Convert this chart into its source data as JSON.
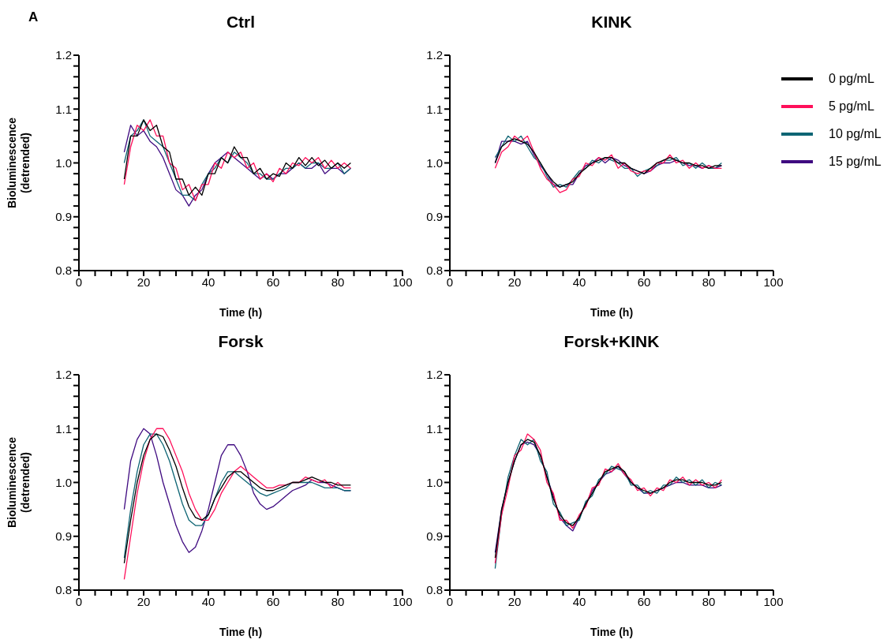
{
  "chart_data": [
    {
      "type": "line",
      "title": "Ctrl",
      "xlabel": "Time (h)",
      "ylabel": "Bioluminescence (detrended)",
      "annotations": [
        "A"
      ],
      "x": [
        14,
        16,
        18,
        20,
        22,
        24,
        26,
        28,
        30,
        32,
        34,
        36,
        38,
        40,
        42,
        44,
        46,
        48,
        50,
        52,
        54,
        56,
        58,
        60,
        62,
        64,
        66,
        68,
        70,
        72,
        74,
        76,
        78,
        80,
        82,
        84
      ],
      "xlim": [
        0,
        100
      ],
      "xticks": [
        0,
        {
          "value": 5,
          "label": null
        },
        {
          "value": 10,
          "label": null
        },
        {
          "value": 15,
          "label": null
        },
        20,
        {
          "value": 25,
          "label": null
        },
        {
          "value": 30,
          "label": null
        },
        {
          "value": 35,
          "label": null
        },
        40,
        {
          "value": 45,
          "label": null
        },
        {
          "value": 50,
          "label": null
        },
        {
          "value": 55,
          "label": null
        },
        60,
        {
          "value": 65,
          "label": null
        },
        {
          "value": 70,
          "label": null
        },
        {
          "value": 75,
          "label": null
        },
        80,
        {
          "value": 85,
          "label": null
        },
        {
          "value": 90,
          "label": null
        },
        {
          "value": 95,
          "label": null
        },
        100
      ],
      "ylim": [
        0.8,
        1.2
      ],
      "yticks": [
        0.8,
        {
          "value": 0.82,
          "label": null
        },
        {
          "value": 0.84,
          "label": null
        },
        {
          "value": 0.86,
          "label": null
        },
        {
          "value": 0.88,
          "label": null
        },
        0.9,
        {
          "value": 0.92,
          "label": null
        },
        {
          "value": 0.94,
          "label": null
        },
        {
          "value": 0.96,
          "label": null
        },
        {
          "value": 0.98,
          "label": null
        },
        {
          "value": 1,
          "label": "1.0"
        },
        {
          "value": 1.02,
          "label": null
        },
        {
          "value": 1.04,
          "label": null
        },
        {
          "value": 1.06,
          "label": null
        },
        {
          "value": 1.08,
          "label": null
        },
        1.1,
        {
          "value": 1.12,
          "label": null
        },
        {
          "value": 1.14,
          "label": null
        },
        {
          "value": 1.16,
          "label": null
        },
        {
          "value": 1.18,
          "label": null
        },
        1.2
      ],
      "series": [
        {
          "color": "#000000",
          "values": [
            0.97,
            1.05,
            1.05,
            1.08,
            1.06,
            1.07,
            1.03,
            1.02,
            0.97,
            0.97,
            0.94,
            0.955,
            0.94,
            0.98,
            0.98,
            1.01,
            1.0,
            1.03,
            1.01,
            1.01,
            0.98,
            0.99,
            0.97,
            0.98,
            0.975,
            1.0,
            0.99,
            1.01,
            0.995,
            1.01,
            0.995,
            1.005,
            0.99,
            1.0,
            0.99,
            1.0
          ]
        },
        {
          "color": "#ff0f5a",
          "values": [
            0.96,
            1.03,
            1.07,
            1.06,
            1.08,
            1.05,
            1.05,
            1.0,
            0.99,
            0.95,
            0.96,
            0.93,
            0.96,
            0.96,
            1.0,
            0.99,
            1.02,
            1.01,
            1.02,
            0.99,
            1.0,
            0.97,
            0.98,
            0.965,
            0.99,
            0.98,
            1.0,
            0.995,
            1.01,
            1.0,
            1.01,
            0.99,
            1.005,
            0.99,
            1.0,
            0.99
          ]
        },
        {
          "color": "#0e6574",
          "values": [
            1.0,
            1.05,
            1.06,
            1.08,
            1.05,
            1.04,
            1.03,
            1.0,
            0.97,
            0.94,
            0.94,
            0.93,
            0.96,
            0.98,
            0.99,
            1.01,
            1.0,
            1.02,
            1.01,
            1.0,
            0.98,
            0.98,
            0.97,
            0.97,
            0.98,
            0.99,
            0.99,
            1.0,
            0.99,
            1.0,
            1.0,
            0.99,
            0.99,
            1.0,
            0.98,
            0.99
          ]
        },
        {
          "color": "#3f0a80",
          "values": [
            1.02,
            1.07,
            1.05,
            1.06,
            1.04,
            1.03,
            1.01,
            0.98,
            0.95,
            0.94,
            0.92,
            0.94,
            0.95,
            0.98,
            1.0,
            1.01,
            1.02,
            1.01,
            1.0,
            0.99,
            0.98,
            0.97,
            0.98,
            0.97,
            0.98,
            0.98,
            0.99,
            1.0,
            0.99,
            0.99,
            1.0,
            0.98,
            0.99,
            0.99,
            0.98,
            0.99
          ]
        }
      ]
    },
    {
      "type": "line",
      "title": "KINK",
      "xlabel": "Time (h)",
      "legend": "right",
      "x": [
        14,
        16,
        18,
        20,
        22,
        24,
        26,
        28,
        30,
        32,
        34,
        36,
        38,
        40,
        42,
        44,
        46,
        48,
        50,
        52,
        54,
        56,
        58,
        60,
        62,
        64,
        66,
        68,
        70,
        72,
        74,
        76,
        78,
        80,
        82,
        84
      ],
      "xlim": [
        0,
        100
      ],
      "xticks": [
        0,
        {
          "value": 5,
          "label": null
        },
        {
          "value": 10,
          "label": null
        },
        {
          "value": 15,
          "label": null
        },
        20,
        {
          "value": 25,
          "label": null
        },
        {
          "value": 30,
          "label": null
        },
        {
          "value": 35,
          "label": null
        },
        40,
        {
          "value": 45,
          "label": null
        },
        {
          "value": 50,
          "label": null
        },
        {
          "value": 55,
          "label": null
        },
        60,
        {
          "value": 65,
          "label": null
        },
        {
          "value": 70,
          "label": null
        },
        {
          "value": 75,
          "label": null
        },
        80,
        {
          "value": 85,
          "label": null
        },
        {
          "value": 90,
          "label": null
        },
        {
          "value": 95,
          "label": null
        },
        100
      ],
      "ylim": [
        0.8,
        1.2
      ],
      "yticks": [
        0.8,
        {
          "value": 0.82,
          "label": null
        },
        {
          "value": 0.84,
          "label": null
        },
        {
          "value": 0.86,
          "label": null
        },
        {
          "value": 0.88,
          "label": null
        },
        0.9,
        {
          "value": 0.92,
          "label": null
        },
        {
          "value": 0.94,
          "label": null
        },
        {
          "value": 0.96,
          "label": null
        },
        {
          "value": 0.98,
          "label": null
        },
        {
          "value": 1,
          "label": "1.0"
        },
        {
          "value": 1.02,
          "label": null
        },
        {
          "value": 1.04,
          "label": null
        },
        {
          "value": 1.06,
          "label": null
        },
        {
          "value": 1.08,
          "label": null
        },
        1.1,
        {
          "value": 1.12,
          "label": null
        },
        {
          "value": 1.14,
          "label": null
        },
        {
          "value": 1.16,
          "label": null
        },
        {
          "value": 1.18,
          "label": null
        },
        1.2
      ],
      "series": [
        {
          "name": "0 pg/mL",
          "color": "#000000",
          "values": [
            1.0,
            1.03,
            1.04,
            1.045,
            1.04,
            1.035,
            1.02,
            1.0,
            0.98,
            0.965,
            0.955,
            0.96,
            0.965,
            0.98,
            0.99,
            1.0,
            1.005,
            1.01,
            1.01,
            1.0,
            1.0,
            0.99,
            0.985,
            0.98,
            0.99,
            1.0,
            1.005,
            1.01,
            1.005,
            1.0,
            1.0,
            0.995,
            0.995,
            0.99,
            0.995,
            0.995
          ]
        },
        {
          "name": "5 pg/mL",
          "color": "#ff0f5a",
          "values": [
            0.99,
            1.02,
            1.03,
            1.05,
            1.04,
            1.05,
            1.02,
            0.99,
            0.97,
            0.96,
            0.945,
            0.95,
            0.97,
            0.975,
            1.0,
            0.995,
            1.01,
            1.005,
            1.015,
            0.99,
            1.0,
            0.985,
            0.98,
            0.985,
            0.985,
            1.0,
            1.0,
            1.015,
            1.0,
            1.005,
            0.99,
            1.0,
            0.99,
            0.995,
            0.99,
            0.99
          ]
        },
        {
          "name": "10 pg/mL",
          "color": "#0e6574",
          "values": [
            1.01,
            1.03,
            1.05,
            1.04,
            1.05,
            1.03,
            1.01,
            1.0,
            0.975,
            0.955,
            0.96,
            0.955,
            0.97,
            0.985,
            0.99,
            1.005,
            1.0,
            1.01,
            1.005,
            1.0,
            0.99,
            0.99,
            0.975,
            0.985,
            0.99,
            0.995,
            1.005,
            1.005,
            1.01,
            0.995,
            1.0,
            0.99,
            1.0,
            0.99,
            0.99,
            1.0
          ]
        },
        {
          "name": "15 pg/mL",
          "color": "#3f0a80",
          "values": [
            1.0,
            1.04,
            1.04,
            1.04,
            1.035,
            1.04,
            1.015,
            0.995,
            0.98,
            0.96,
            0.955,
            0.96,
            0.96,
            0.98,
            0.995,
            1.0,
            1.01,
            1.0,
            1.01,
            1.005,
            0.995,
            0.99,
            0.985,
            0.98,
            0.985,
            0.995,
            1.0,
            1.0,
            1.005,
            1.0,
            0.995,
            0.995,
            0.99,
            0.995,
            0.99,
            0.995
          ]
        }
      ]
    },
    {
      "type": "line",
      "title": "Forsk",
      "xlabel": "Time (h)",
      "ylabel": "Bioluminescence (detrended)",
      "x": [
        14,
        16,
        18,
        20,
        22,
        24,
        26,
        28,
        30,
        32,
        34,
        36,
        38,
        40,
        42,
        44,
        46,
        48,
        50,
        52,
        54,
        56,
        58,
        60,
        62,
        64,
        66,
        68,
        70,
        72,
        74,
        76,
        78,
        80,
        82,
        84
      ],
      "xlim": [
        0,
        100
      ],
      "xticks": [
        0,
        {
          "value": 5,
          "label": null
        },
        {
          "value": 10,
          "label": null
        },
        {
          "value": 15,
          "label": null
        },
        20,
        {
          "value": 25,
          "label": null
        },
        {
          "value": 30,
          "label": null
        },
        {
          "value": 35,
          "label": null
        },
        40,
        {
          "value": 45,
          "label": null
        },
        {
          "value": 50,
          "label": null
        },
        {
          "value": 55,
          "label": null
        },
        60,
        {
          "value": 65,
          "label": null
        },
        {
          "value": 70,
          "label": null
        },
        {
          "value": 75,
          "label": null
        },
        80,
        {
          "value": 85,
          "label": null
        },
        {
          "value": 90,
          "label": null
        },
        {
          "value": 95,
          "label": null
        },
        100
      ],
      "ylim": [
        0.8,
        1.2
      ],
      "yticks": [
        0.8,
        {
          "value": 0.82,
          "label": null
        },
        {
          "value": 0.84,
          "label": null
        },
        {
          "value": 0.86,
          "label": null
        },
        {
          "value": 0.88,
          "label": null
        },
        0.9,
        {
          "value": 0.92,
          "label": null
        },
        {
          "value": 0.94,
          "label": null
        },
        {
          "value": 0.96,
          "label": null
        },
        {
          "value": 0.98,
          "label": null
        },
        {
          "value": 1,
          "label": "1.0"
        },
        {
          "value": 1.02,
          "label": null
        },
        {
          "value": 1.04,
          "label": null
        },
        {
          "value": 1.06,
          "label": null
        },
        {
          "value": 1.08,
          "label": null
        },
        1.1,
        {
          "value": 1.12,
          "label": null
        },
        {
          "value": 1.14,
          "label": null
        },
        {
          "value": 1.16,
          "label": null
        },
        {
          "value": 1.18,
          "label": null
        },
        1.2
      ],
      "series": [
        {
          "color": "#000000",
          "values": [
            0.85,
            0.93,
            1.0,
            1.05,
            1.08,
            1.09,
            1.085,
            1.06,
            1.03,
            0.99,
            0.955,
            0.935,
            0.93,
            0.94,
            0.97,
            0.99,
            1.01,
            1.02,
            1.02,
            1.01,
            1.0,
            0.99,
            0.985,
            0.985,
            0.99,
            0.995,
            1.0,
            1.0,
            1.005,
            1.01,
            1.005,
            1.0,
            1.0,
            0.995,
            0.995,
            0.995
          ]
        },
        {
          "color": "#ff0f5a",
          "values": [
            0.82,
            0.9,
            0.98,
            1.04,
            1.08,
            1.1,
            1.1,
            1.08,
            1.05,
            1.02,
            0.98,
            0.95,
            0.93,
            0.93,
            0.95,
            0.98,
            1.0,
            1.02,
            1.03,
            1.02,
            1.01,
            1.0,
            0.99,
            0.99,
            0.995,
            0.995,
            1.0,
            1.0,
            1.01,
            1.005,
            1.0,
            1.005,
            0.99,
            1.0,
            0.99,
            0.99
          ]
        },
        {
          "color": "#0e6574",
          "values": [
            0.86,
            0.95,
            1.02,
            1.07,
            1.09,
            1.09,
            1.07,
            1.04,
            1.0,
            0.96,
            0.93,
            0.92,
            0.92,
            0.94,
            0.97,
            1.0,
            1.02,
            1.02,
            1.01,
            1.0,
            0.99,
            0.98,
            0.975,
            0.98,
            0.985,
            0.99,
            1.0,
            1.0,
            1.0,
            1.0,
            0.995,
            0.99,
            0.99,
            0.99,
            0.985,
            0.985
          ]
        },
        {
          "color": "#3f0a80",
          "values": [
            0.95,
            1.04,
            1.08,
            1.1,
            1.09,
            1.05,
            1.0,
            0.96,
            0.92,
            0.89,
            0.87,
            0.88,
            0.91,
            0.95,
            1.0,
            1.05,
            1.07,
            1.07,
            1.05,
            1.02,
            0.98,
            0.96,
            0.95,
            0.955,
            0.965,
            0.975,
            0.985,
            0.99,
            0.995,
            1.005,
            1.0,
            1.0,
            0.995,
            0.99,
            0.985,
            0.985
          ]
        }
      ]
    },
    {
      "type": "line",
      "title": "Forsk+KINK",
      "xlabel": "Time (h)",
      "x": [
        14,
        16,
        18,
        20,
        22,
        24,
        26,
        28,
        30,
        32,
        34,
        36,
        38,
        40,
        42,
        44,
        46,
        48,
        50,
        52,
        54,
        56,
        58,
        60,
        62,
        64,
        66,
        68,
        70,
        72,
        74,
        76,
        78,
        80,
        82,
        84
      ],
      "xlim": [
        0,
        100
      ],
      "xticks": [
        0,
        {
          "value": 5,
          "label": null
        },
        {
          "value": 10,
          "label": null
        },
        {
          "value": 15,
          "label": null
        },
        20,
        {
          "value": 25,
          "label": null
        },
        {
          "value": 30,
          "label": null
        },
        {
          "value": 35,
          "label": null
        },
        40,
        {
          "value": 45,
          "label": null
        },
        {
          "value": 50,
          "label": null
        },
        {
          "value": 55,
          "label": null
        },
        60,
        {
          "value": 65,
          "label": null
        },
        {
          "value": 70,
          "label": null
        },
        {
          "value": 75,
          "label": null
        },
        80,
        {
          "value": 85,
          "label": null
        },
        {
          "value": 90,
          "label": null
        },
        {
          "value": 95,
          "label": null
        },
        100
      ],
      "ylim": [
        0.8,
        1.2
      ],
      "yticks": [
        0.8,
        {
          "value": 0.82,
          "label": null
        },
        {
          "value": 0.84,
          "label": null
        },
        {
          "value": 0.86,
          "label": null
        },
        {
          "value": 0.88,
          "label": null
        },
        0.9,
        {
          "value": 0.92,
          "label": null
        },
        {
          "value": 0.94,
          "label": null
        },
        {
          "value": 0.96,
          "label": null
        },
        {
          "value": 0.98,
          "label": null
        },
        {
          "value": 1,
          "label": "1.0"
        },
        {
          "value": 1.02,
          "label": null
        },
        {
          "value": 1.04,
          "label": null
        },
        {
          "value": 1.06,
          "label": null
        },
        {
          "value": 1.08,
          "label": null
        },
        1.1,
        {
          "value": 1.12,
          "label": null
        },
        {
          "value": 1.14,
          "label": null
        },
        {
          "value": 1.16,
          "label": null
        },
        {
          "value": 1.18,
          "label": null
        },
        1.2
      ],
      "series": [
        {
          "color": "#000000",
          "values": [
            0.86,
            0.95,
            1.0,
            1.04,
            1.07,
            1.08,
            1.075,
            1.05,
            1.01,
            0.97,
            0.94,
            0.925,
            0.92,
            0.935,
            0.96,
            0.98,
            1.0,
            1.02,
            1.025,
            1.03,
            1.02,
            1.0,
            0.99,
            0.985,
            0.98,
            0.985,
            0.99,
            1.0,
            1.005,
            1.005,
            1.0,
            1.0,
            1.0,
            0.995,
            0.995,
            1.0
          ]
        },
        {
          "color": "#ff0f5a",
          "values": [
            0.85,
            0.94,
            0.99,
            1.05,
            1.06,
            1.09,
            1.08,
            1.06,
            1.0,
            0.98,
            0.93,
            0.93,
            0.915,
            0.94,
            0.955,
            0.99,
            0.995,
            1.025,
            1.02,
            1.035,
            1.015,
            1.005,
            0.985,
            0.99,
            0.975,
            0.99,
            0.985,
            1.005,
            1.0,
            1.01,
            0.995,
            1.005,
            0.995,
            1.0,
            0.99,
            1.005
          ]
        },
        {
          "color": "#0e6574",
          "values": [
            0.84,
            0.94,
            1.01,
            1.05,
            1.08,
            1.07,
            1.08,
            1.04,
            1.02,
            0.96,
            0.945,
            0.92,
            0.925,
            0.93,
            0.965,
            0.975,
            1.005,
            1.015,
            1.03,
            1.025,
            1.02,
            0.995,
            0.995,
            0.98,
            0.985,
            0.98,
            0.995,
            0.995,
            1.01,
            1.0,
            1.005,
            0.995,
            1.005,
            0.99,
            1.0,
            0.995
          ]
        },
        {
          "color": "#3f0a80",
          "values": [
            0.87,
            0.95,
            1.0,
            1.04,
            1.07,
            1.075,
            1.07,
            1.05,
            1.01,
            0.975,
            0.935,
            0.92,
            0.91,
            0.935,
            0.96,
            0.985,
            1.0,
            1.015,
            1.02,
            1.03,
            1.015,
            1.0,
            0.99,
            0.98,
            0.98,
            0.985,
            0.99,
            0.995,
            1.0,
            1.0,
            0.995,
            0.995,
            0.995,
            0.99,
            0.99,
            0.995
          ]
        }
      ]
    }
  ]
}
